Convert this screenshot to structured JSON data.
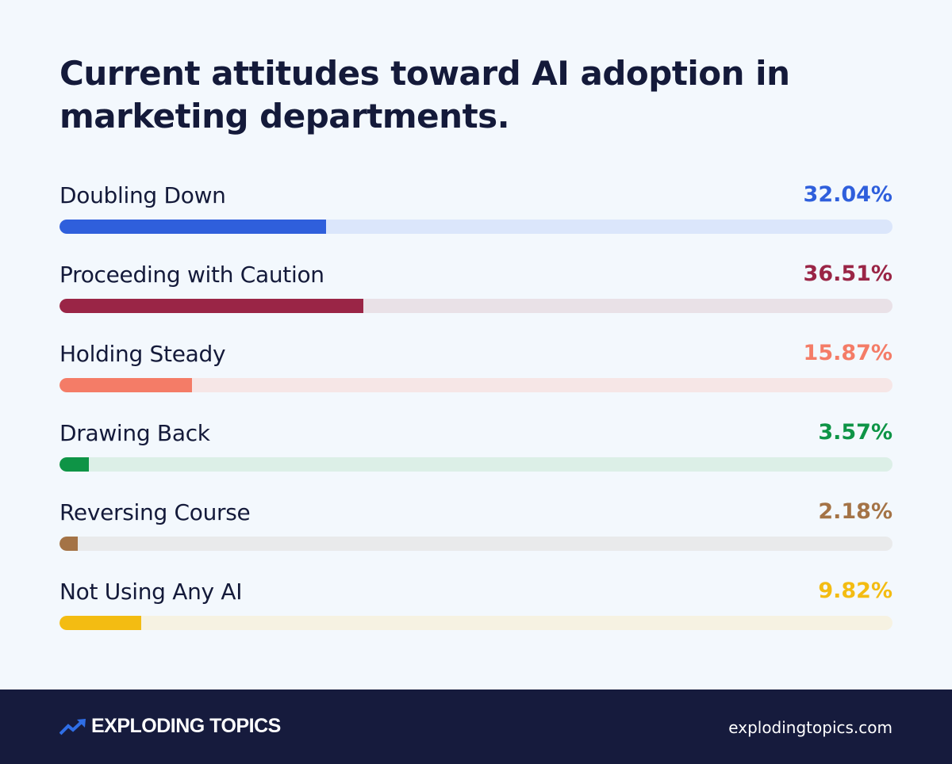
{
  "chart_data": {
    "type": "bar",
    "orientation": "horizontal",
    "title": "Current attitudes toward AI adoption in marketing departments.",
    "xlim": [
      0,
      100
    ],
    "categories": [
      "Doubling Down",
      "Proceeding with Caution",
      "Holding Steady",
      "Drawing Back",
      "Reversing Course",
      "Not Using Any AI"
    ],
    "values": [
      32.04,
      36.51,
      15.87,
      3.57,
      2.18,
      9.82
    ],
    "value_labels": [
      "32.04%",
      "36.51%",
      "15.87%",
      "3.57%",
      "2.18%",
      "9.82%"
    ],
    "colors": [
      "#2f5fdc",
      "#9a2546",
      "#f47c67",
      "#0e9446",
      "#a47346",
      "#f3bc12"
    ],
    "track_colors": [
      "#dbe6fb",
      "#e9e1e7",
      "#f6e6e6",
      "#dcefe7",
      "#e9eaeb",
      "#f6f2e2"
    ]
  },
  "footer": {
    "brand": "EXPLODING TOPICS",
    "site": "explodingtopics.com",
    "logo_color": "#2f6ee6"
  }
}
